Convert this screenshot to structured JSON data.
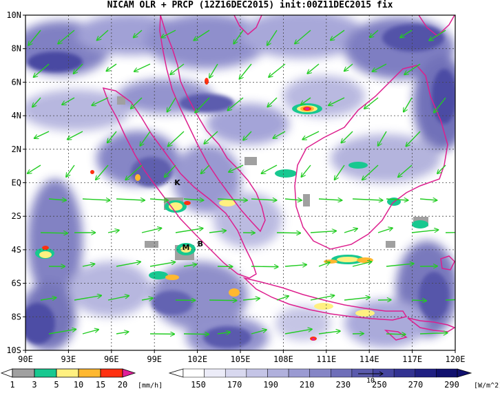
{
  "title": "NICAM OLR + PRCP (12Z16DEC2015) init:00Z11DEC2015 fix",
  "map": {
    "lon_range": [
      90,
      120
    ],
    "lat_range": [
      -10,
      10
    ],
    "lat_labels": [
      "10N",
      "8N",
      "6N",
      "4N",
      "2N",
      "EQ",
      "2S",
      "4S",
      "6S",
      "8S",
      "10S"
    ],
    "lon_labels": [
      "90E",
      "93E",
      "96E",
      "99E",
      "102E",
      "105E",
      "108E",
      "111E",
      "114E",
      "117E",
      "120E"
    ],
    "place_labels": [
      {
        "text": "K",
        "lon": 100.6,
        "lat": -0.15
      },
      {
        "text": "M",
        "lon": 101.2,
        "lat": -4.0
      },
      {
        "text": "B",
        "lon": 102.2,
        "lat": -3.8
      }
    ],
    "colors": {
      "coastline": "#dd1f8e",
      "wind_vector": "#22cc22",
      "olr_low": "#e8e8f6",
      "olr_high": "#2a2f8c"
    }
  },
  "precip_colorbar": {
    "labels": [
      "1",
      "3",
      "5",
      "10",
      "15",
      "20"
    ],
    "unit": "[mm/h]",
    "colors": [
      "#a0a0a0",
      "#18c890",
      "#fff080",
      "#ffb830",
      "#ff3010",
      "#e0209a"
    ]
  },
  "olr_colorbar": {
    "labels": [
      "150",
      "170",
      "190",
      "210",
      "230",
      "250",
      "270",
      "290"
    ],
    "unit": "[W/m^2]",
    "reference_vector_label": "10",
    "colors": [
      "#ffffff",
      "#ececf8",
      "#d8d8ef",
      "#c4c4e6",
      "#b0b0dc",
      "#9a9ad2",
      "#8585c6",
      "#6f6fb9",
      "#5a5aac",
      "#4545a0",
      "#323291",
      "#1f1f82",
      "#10106e"
    ]
  }
}
